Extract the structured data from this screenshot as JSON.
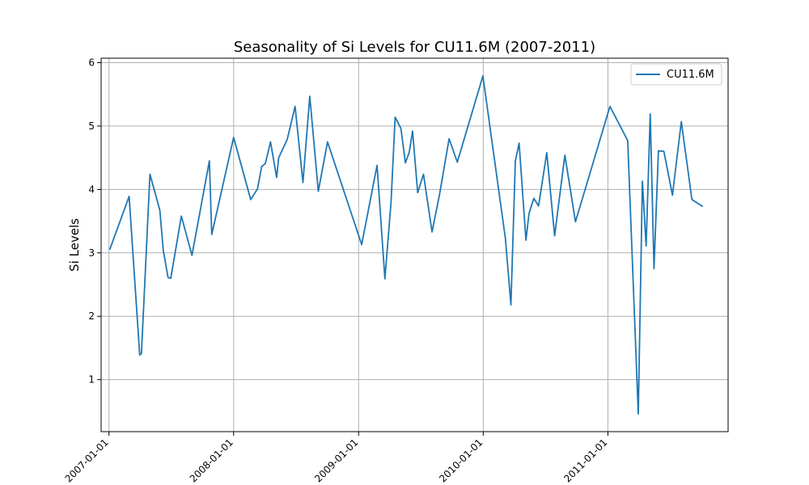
{
  "chart_data": {
    "type": "line",
    "title": "Seasonality of Si Levels for CU11.6M (2007-2011)",
    "xlabel": "",
    "ylabel": "Si Levels",
    "x_axis_type": "date",
    "xlim": [
      "2006-12-09",
      "2011-12-19"
    ],
    "ylim": [
      0.18,
      6.07
    ],
    "x_ticks": [
      "2007-01-01",
      "2008-01-01",
      "2009-01-01",
      "2010-01-01",
      "2011-01-01"
    ],
    "y_ticks": [
      1,
      2,
      3,
      4,
      5,
      6
    ],
    "grid": true,
    "legend": {
      "position": "top-right"
    },
    "colors": {
      "series": "#1f77b4",
      "grid": "#b0b0b0"
    },
    "series": [
      {
        "name": "CU11.6M",
        "x": [
          "2007-01-03",
          "2007-03-01",
          "2007-04-01",
          "2007-04-06",
          "2007-05-01",
          "2007-05-30",
          "2007-06-09",
          "2007-06-23",
          "2007-07-01",
          "2007-08-01",
          "2007-09-01",
          "2007-10-22",
          "2007-10-29",
          "2008-01-01",
          "2008-02-20",
          "2008-03-11",
          "2008-03-23",
          "2008-04-03",
          "2008-04-18",
          "2008-05-06",
          "2008-05-12",
          "2008-06-06",
          "2008-06-29",
          "2008-07-22",
          "2008-08-11",
          "2008-09-05",
          "2008-10-02",
          "2009-01-10",
          "2009-02-24",
          "2009-03-19",
          "2009-04-06",
          "2009-04-18",
          "2009-05-05",
          "2009-05-18",
          "2009-05-29",
          "2009-06-08",
          "2009-06-23",
          "2009-07-10",
          "2009-08-04",
          "2009-08-26",
          "2009-09-23",
          "2009-10-17",
          "2009-12-31",
          "2010-03-07",
          "2010-03-23",
          "2010-04-05",
          "2010-04-16",
          "2010-05-06",
          "2010-05-15",
          "2010-05-29",
          "2010-06-12",
          "2010-07-06",
          "2010-07-29",
          "2010-08-28",
          "2010-09-28",
          "2011-01-07",
          "2011-02-28",
          "2011-03-31",
          "2011-04-12",
          "2011-04-23",
          "2011-05-05",
          "2011-05-16",
          "2011-05-29",
          "2011-06-14",
          "2011-07-09",
          "2011-08-04",
          "2011-09-04",
          "2011-10-06"
        ],
        "y": [
          3.05,
          3.89,
          1.39,
          1.41,
          4.24,
          3.67,
          3.04,
          2.61,
          2.6,
          3.58,
          2.96,
          4.45,
          3.29,
          4.82,
          3.84,
          4.01,
          4.36,
          4.41,
          4.75,
          4.19,
          4.5,
          4.79,
          5.31,
          4.11,
          5.47,
          3.97,
          4.75,
          3.13,
          4.38,
          2.59,
          3.8,
          5.14,
          4.96,
          4.42,
          4.58,
          4.92,
          3.95,
          4.24,
          3.33,
          3.92,
          4.8,
          4.43,
          5.79,
          3.22,
          2.18,
          4.45,
          4.73,
          3.2,
          3.62,
          3.86,
          3.74,
          4.58,
          3.27,
          4.54,
          3.49,
          5.31,
          4.77,
          0.46,
          4.13,
          3.11,
          5.19,
          2.75,
          4.61,
          4.6,
          3.91,
          5.07,
          3.84,
          3.73
        ]
      }
    ]
  }
}
